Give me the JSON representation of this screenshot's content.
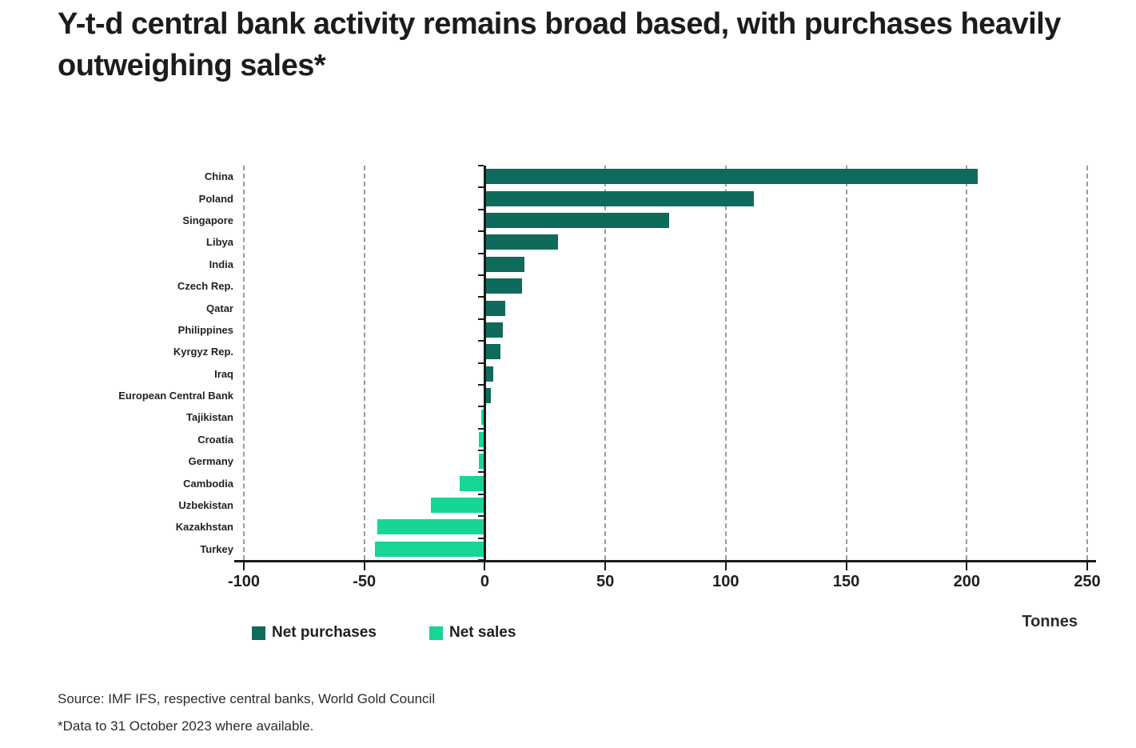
{
  "header": {
    "title": "Y-t-d central bank activity remains broad based, with purchases heavily outweighing sales*"
  },
  "legend": {
    "purchases_label": "Net purchases",
    "sales_label": "Net sales"
  },
  "axis": {
    "unit_label": "Tonnes"
  },
  "colors": {
    "purchases": "#0e6b5c",
    "sales": "#17d592",
    "grid": "#9b9b9b",
    "axis": "#1a1a1a"
  },
  "footer": {
    "source_line1": "Source: IMF IFS, respective central banks, World Gold Council",
    "source_line2": "*Data to 31 October 2023 where available."
  },
  "chart_data": {
    "type": "bar",
    "orientation": "horizontal",
    "title": "Y-t-d central bank activity remains broad based, with purchases heavily outweighing sales*",
    "xlabel": "Tonnes",
    "xlim": [
      -100,
      250
    ],
    "xticks": [
      -100,
      -50,
      0,
      50,
      100,
      150,
      200,
      250
    ],
    "categories": [
      "China",
      "Poland",
      "Singapore",
      "Libya",
      "India",
      "Czech Rep.",
      "Qatar",
      "Philippines",
      "Kyrgyz Rep.",
      "Iraq",
      "European Central Bank",
      "Tajikistan",
      "Croatia",
      "Germany",
      "Cambodia",
      "Uzbekistan",
      "Kazakhstan",
      "Turkey"
    ],
    "values": [
      204,
      111,
      76,
      30,
      16,
      15,
      8,
      7,
      6,
      3,
      2,
      -1,
      -2,
      -2,
      -10,
      -22,
      -44,
      -45
    ],
    "series": [
      {
        "name": "Net purchases",
        "rule": "values >= 0",
        "color": "#0e6b5c"
      },
      {
        "name": "Net sales",
        "rule": "values < 0",
        "color": "#17d592"
      }
    ],
    "grid": "dashed vertical gridlines at every 50-tonne tick except 0; solid black axis at 0",
    "legend_position": "bottom-left",
    "units": "tonnes"
  }
}
